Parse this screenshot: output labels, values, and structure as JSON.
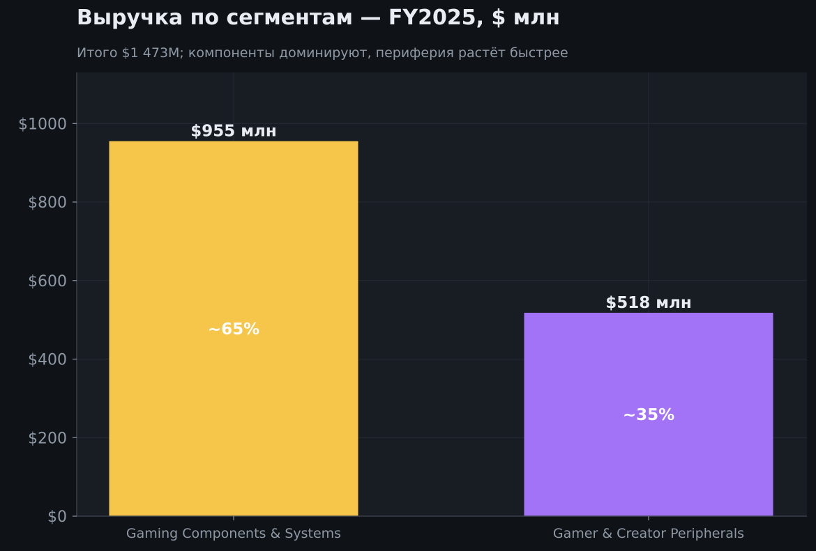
{
  "chart_data": {
    "type": "bar",
    "title": "Выручка по сегментам — FY2025, $ млн",
    "subtitle": "Итого $1 473M; компоненты доминируют, периферия растёт быстрее",
    "categories": [
      "Gaming Components & Systems",
      "Gamer & Creator Peripherals"
    ],
    "values": [
      955,
      518
    ],
    "value_labels": [
      "$955 млн",
      "$518 млн"
    ],
    "share_labels": [
      "~65%",
      "~35%"
    ],
    "colors": [
      "#f6c64a",
      "#a373f7"
    ],
    "ylim": [
      0,
      1130
    ],
    "yticks": [
      0,
      200,
      400,
      600,
      800,
      1000
    ],
    "ytick_labels": [
      "$0",
      "$200",
      "$400",
      "$600",
      "$800",
      "$1000"
    ],
    "grid": true,
    "legend": "none"
  }
}
